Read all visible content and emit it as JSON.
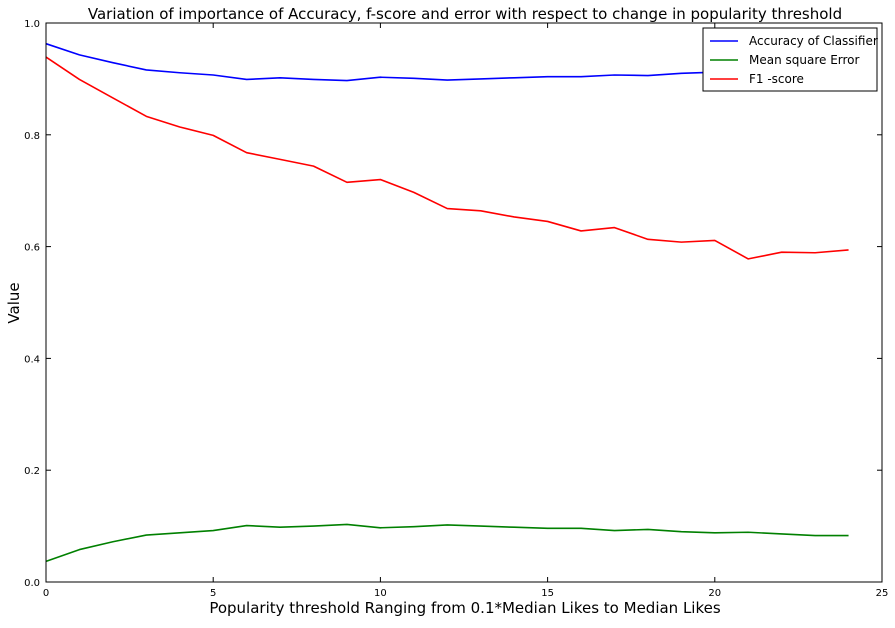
{
  "chart_data": {
    "type": "line",
    "title": "Variation of importance of Accuracy, f-score and error with respect to change in popularity threshold",
    "xlabel": "Popularity threshold Ranging from 0.1*Median Likes to Median Likes",
    "ylabel": "Value",
    "xlim": [
      0,
      25
    ],
    "ylim": [
      0,
      1.0
    ],
    "x_ticks": [
      0,
      5,
      10,
      15,
      20,
      25
    ],
    "x_tick_labels": [
      "0",
      "5",
      "10",
      "15",
      "20",
      "25"
    ],
    "y_ticks": [
      0.0,
      0.2,
      0.4,
      0.6,
      0.8,
      1.0
    ],
    "y_tick_labels": [
      "0.0",
      "0.2",
      "0.4",
      "0.6",
      "0.8",
      "1.0"
    ],
    "grid": false,
    "legend_position": "top-right",
    "x": [
      0,
      1,
      2,
      3,
      4,
      5,
      6,
      7,
      8,
      9,
      10,
      11,
      12,
      13,
      14,
      15,
      16,
      17,
      18,
      19,
      20,
      21,
      22,
      23,
      24
    ],
    "series": [
      {
        "name": "Accuracy of Classifier",
        "color": "#0000ff",
        "values": [
          0.963,
          0.943,
          0.929,
          0.916,
          0.911,
          0.907,
          0.899,
          0.902,
          0.899,
          0.897,
          0.903,
          0.901,
          0.898,
          0.9,
          0.902,
          0.904,
          0.904,
          0.907,
          0.906,
          0.91,
          0.912,
          0.914,
          0.915,
          0.916,
          0.917
        ]
      },
      {
        "name": "Mean square Error",
        "color": "#008000",
        "values": [
          0.037,
          0.058,
          0.072,
          0.084,
          0.088,
          0.092,
          0.101,
          0.098,
          0.1,
          0.103,
          0.097,
          0.099,
          0.102,
          0.1,
          0.098,
          0.096,
          0.096,
          0.092,
          0.094,
          0.09,
          0.088,
          0.089,
          0.086,
          0.083,
          0.083
        ]
      },
      {
        "name": "F1 -score",
        "color": "#ff0000",
        "values": [
          0.939,
          0.899,
          0.866,
          0.833,
          0.814,
          0.799,
          0.768,
          0.756,
          0.744,
          0.715,
          0.72,
          0.697,
          0.668,
          0.664,
          0.653,
          0.645,
          0.628,
          0.634,
          0.613,
          0.608,
          0.611,
          0.578,
          0.59,
          0.589,
          0.594
        ]
      }
    ]
  }
}
